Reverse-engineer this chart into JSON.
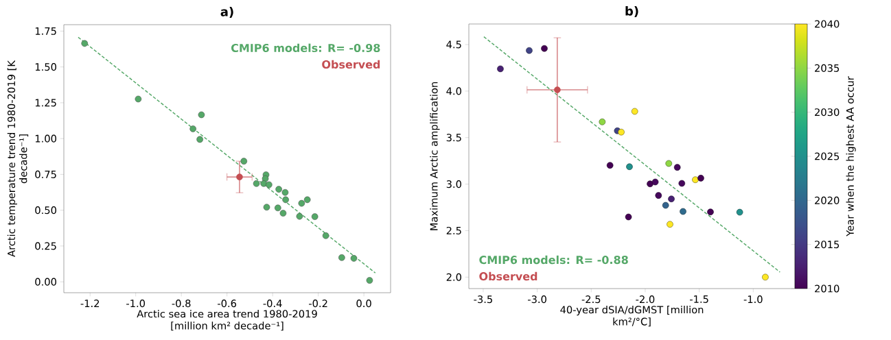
{
  "chart_data": [
    {
      "type": "scatter",
      "title": "a)",
      "xlabel": "Arctic sea ice area trend 1980-2019 [million km² decade⁻¹]",
      "ylabel": "Arctic temperature trend 1980-2019 [K decade⁻¹]",
      "xlim": [
        -1.315,
        0.117
      ],
      "ylim": [
        -0.076,
        1.795
      ],
      "xticks": [
        {
          "value": -1.2,
          "label": "-1.2"
        },
        {
          "value": -1.0,
          "label": "-1.0"
        },
        {
          "value": -0.8,
          "label": "-0.8"
        },
        {
          "value": -0.6,
          "label": "-0.6"
        },
        {
          "value": -0.4,
          "label": "-0.4"
        },
        {
          "value": -0.2,
          "label": "-0.2"
        },
        {
          "value": 0,
          "label": "0.0"
        }
      ],
      "yticks": [
        {
          "value": 0,
          "label": "0.00"
        },
        {
          "value": 0.25,
          "label": "0.25"
        },
        {
          "value": 0.5,
          "label": "0.50"
        },
        {
          "value": 0.75,
          "label": "0.75"
        },
        {
          "value": 1.0,
          "label": "1.00"
        },
        {
          "value": 1.25,
          "label": "1.25"
        },
        {
          "value": 1.5,
          "label": "1.50"
        },
        {
          "value": 1.75,
          "label": "1.75"
        }
      ],
      "grid": false,
      "annotations": [
        "CMIP6 models: R= -0.98",
        "Observed"
      ],
      "series": [
        {
          "marker": "circle",
          "color": "#55a868",
          "x": [
            -1.224,
            -0.989,
            -0.712,
            -0.749,
            -0.719,
            -0.526,
            -0.429,
            -0.432,
            -0.471,
            -0.439,
            -0.416,
            -0.373,
            -0.345,
            -0.343,
            -0.426,
            -0.377,
            -0.354,
            -0.273,
            -0.248,
            -0.282,
            -0.215,
            -0.167,
            -0.097,
            -0.044,
            0.025
          ],
          "values": [
            1.664,
            1.276,
            1.166,
            1.068,
            0.994,
            0.842,
            0.747,
            0.72,
            0.686,
            0.686,
            0.678,
            0.646,
            0.624,
            0.573,
            0.521,
            0.516,
            0.479,
            0.548,
            0.573,
            0.457,
            0.455,
            0.322,
            0.169,
            0.164,
            0.01
          ]
        },
        {
          "type": "line",
          "color": "#55a868",
          "line_style": "dashed",
          "x": [
            -1.252,
            0.05
          ],
          "values": [
            1.707,
            0.062
          ]
        },
        {
          "marker": "circle",
          "color": "#c44e52",
          "x": [
            -0.545
          ],
          "values": [
            0.732
          ],
          "errors": [
            0.11
          ],
          "xerrors": [
            0.055
          ]
        }
      ]
    },
    {
      "type": "scatter",
      "title": "b)",
      "xlabel": "40-year dSIA/dGMST [million km²/°C]",
      "ylabel": "Maximum Arctic amplification",
      "clabel": "Year when the highest AA occur",
      "xlim": [
        -3.633,
        -0.614
      ],
      "ylim": [
        1.877,
        4.721
      ],
      "xticks": [
        {
          "value": -3.5,
          "label": "-3.5"
        },
        {
          "value": -3.0,
          "label": "-3.0"
        },
        {
          "value": -2.5,
          "label": "-2.5"
        },
        {
          "value": -2.0,
          "label": "-2.0"
        },
        {
          "value": -1.5,
          "label": "-1.5"
        },
        {
          "value": -1.0,
          "label": "-1.0"
        }
      ],
      "yticks": [
        {
          "value": 2.0,
          "label": "2.0"
        },
        {
          "value": 2.5,
          "label": "2.5"
        },
        {
          "value": 3.0,
          "label": "3.0"
        },
        {
          "value": 3.5,
          "label": "3.5"
        },
        {
          "value": 4.0,
          "label": "4.0"
        },
        {
          "value": 4.5,
          "label": "4.5"
        }
      ],
      "clim": [
        2010,
        2040
      ],
      "cticks": [
        2010,
        2015,
        2020,
        2025,
        2030,
        2035,
        2040
      ],
      "grid": false,
      "annotations": [
        "CMIP6 models: R= -0.88",
        "Observed"
      ],
      "series": [
        {
          "marker": "circle",
          "x": [
            -3.341,
            -3.074,
            -2.934,
            -2.398,
            -2.258,
            -2.222,
            -2.097,
            -2.326,
            -2.146,
            -1.782,
            -1.703,
            -1.955,
            -1.907,
            -1.661,
            -1.536,
            -1.485,
            -1.877,
            -1.758,
            -1.811,
            -1.65,
            -2.155,
            -1.771,
            -1.396,
            -1.125,
            -0.888
          ],
          "values": [
            4.239,
            4.436,
            4.458,
            3.669,
            3.573,
            3.559,
            3.782,
            3.202,
            3.187,
            3.222,
            3.18,
            3.003,
            3.023,
            3.008,
            3.047,
            3.064,
            2.878,
            2.841,
            2.772,
            2.706,
            2.647,
            2.568,
            2.701,
            2.698,
            2.0
          ],
          "cvalues": [
            2013,
            2016,
            2010,
            2035,
            2016,
            2040,
            2040,
            2010,
            2025,
            2035,
            2011,
            2010,
            2011,
            2011,
            2040,
            2010,
            2011,
            2013,
            2020,
            2021,
            2010,
            2040,
            2010,
            2025,
            2040
          ],
          "colors": [
            "#482173",
            "#414487",
            "#440154",
            "#8fd744",
            "#414487",
            "#fde725",
            "#fde725",
            "#440154",
            "#21918c",
            "#8fd744",
            "#46085c",
            "#440154",
            "#46085c",
            "#46085c",
            "#fde725",
            "#440154",
            "#46085c",
            "#482173",
            "#33638d",
            "#2f6b8e",
            "#440154",
            "#fde725",
            "#440154",
            "#21918c",
            "#fde725"
          ]
        },
        {
          "type": "line",
          "color": "#55a868",
          "line_style": "dashed",
          "x": [
            -3.494,
            -0.752
          ],
          "values": [
            4.584,
            2.054
          ]
        },
        {
          "marker": "circle",
          "color": "#c44e52",
          "x": [
            -2.814
          ],
          "values": [
            4.013
          ],
          "errors": [
            0.56
          ],
          "xerrors": [
            0.28
          ]
        }
      ]
    }
  ]
}
